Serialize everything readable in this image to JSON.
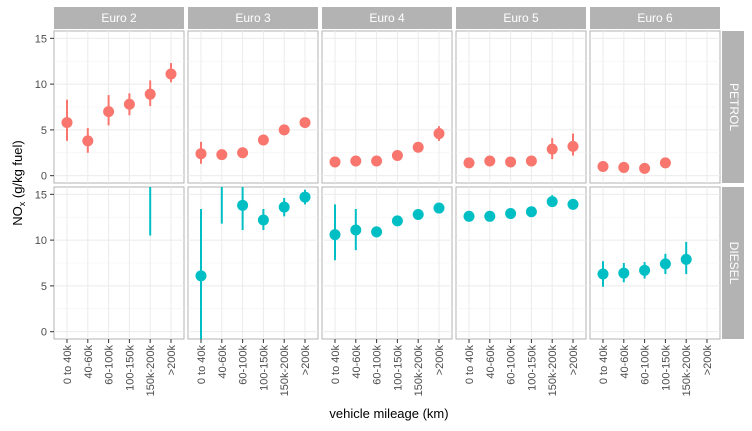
{
  "chart_data": {
    "type": "scatter",
    "xlabel": "vehicle mileage (km)",
    "ylabel": "NO",
    "ylabel_sub": "x",
    "ylabel_rest": " (g/kg fuel)",
    "ylim": [
      -0.8,
      15.8
    ],
    "yticks": [
      "0",
      "5",
      "10",
      "15"
    ],
    "ytick_values": [
      0,
      5,
      10,
      15
    ],
    "categories": [
      "0 to 40k",
      "40-60k",
      "60-100k",
      "100-150k",
      "150k-200k",
      ">200k"
    ],
    "columns": [
      "Euro 2",
      "Euro 3",
      "Euro 4",
      "Euro 5",
      "Euro 6"
    ],
    "rows": [
      "PETROL",
      "DIESEL"
    ],
    "colors": {
      "PETROL": "#F8766D",
      "DIESEL": "#00BFC4",
      "strip": "#b3b3b3",
      "grid": "#ebebeb",
      "border": "#b3b3b3"
    },
    "grid": true,
    "legend": "none",
    "series": [
      {
        "fuel": "PETROL",
        "euro": "Euro 2",
        "points": [
          {
            "x": "0 to 40k",
            "y": 5.8,
            "lo": 3.8,
            "hi": 8.3
          },
          {
            "x": "40-60k",
            "y": 3.8,
            "lo": 2.5,
            "hi": 5.2
          },
          {
            "x": "60-100k",
            "y": 7.0,
            "lo": 5.5,
            "hi": 8.8
          },
          {
            "x": "100-150k",
            "y": 7.8,
            "lo": 6.6,
            "hi": 9.0
          },
          {
            "x": "150k-200k",
            "y": 8.9,
            "lo": 7.6,
            "hi": 10.4
          },
          {
            "x": ">200k",
            "y": 11.1,
            "lo": 10.2,
            "hi": 12.3
          }
        ]
      },
      {
        "fuel": "PETROL",
        "euro": "Euro 3",
        "points": [
          {
            "x": "0 to 40k",
            "y": 2.4,
            "lo": 1.3,
            "hi": 3.7
          },
          {
            "x": "40-60k",
            "y": 2.3,
            "lo": 1.8,
            "hi": 2.8
          },
          {
            "x": "60-100k",
            "y": 2.5,
            "lo": 2.1,
            "hi": 2.9
          },
          {
            "x": "100-150k",
            "y": 3.9,
            "lo": 3.5,
            "hi": 4.3
          },
          {
            "x": "150k-200k",
            "y": 5.0,
            "lo": 4.6,
            "hi": 5.4
          },
          {
            "x": ">200k",
            "y": 5.8,
            "lo": 5.3,
            "hi": 6.3
          }
        ]
      },
      {
        "fuel": "PETROL",
        "euro": "Euro 4",
        "points": [
          {
            "x": "0 to 40k",
            "y": 1.5,
            "lo": 1.2,
            "hi": 1.8
          },
          {
            "x": "40-60k",
            "y": 1.6,
            "lo": 1.3,
            "hi": 1.9
          },
          {
            "x": "60-100k",
            "y": 1.6,
            "lo": 1.3,
            "hi": 1.9
          },
          {
            "x": "100-150k",
            "y": 2.2,
            "lo": 1.8,
            "hi": 2.6
          },
          {
            "x": "150k-200k",
            "y": 3.1,
            "lo": 2.6,
            "hi": 3.6
          },
          {
            "x": ">200k",
            "y": 4.6,
            "lo": 3.8,
            "hi": 5.4
          }
        ]
      },
      {
        "fuel": "PETROL",
        "euro": "Euro 5",
        "points": [
          {
            "x": "0 to 40k",
            "y": 1.4,
            "lo": 1.1,
            "hi": 1.7
          },
          {
            "x": "40-60k",
            "y": 1.6,
            "lo": 1.3,
            "hi": 1.9
          },
          {
            "x": "60-100k",
            "y": 1.5,
            "lo": 1.2,
            "hi": 1.8
          },
          {
            "x": "100-150k",
            "y": 1.6,
            "lo": 1.3,
            "hi": 2.0
          },
          {
            "x": "150k-200k",
            "y": 2.9,
            "lo": 1.8,
            "hi": 4.1
          },
          {
            "x": ">200k",
            "y": 3.2,
            "lo": 2.2,
            "hi": 4.6
          }
        ]
      },
      {
        "fuel": "PETROL",
        "euro": "Euro 6",
        "points": [
          {
            "x": "0 to 40k",
            "y": 1.0,
            "lo": 0.7,
            "hi": 1.3
          },
          {
            "x": "40-60k",
            "y": 0.9,
            "lo": 0.6,
            "hi": 1.2
          },
          {
            "x": "60-100k",
            "y": 0.8,
            "lo": 0.5,
            "hi": 1.1
          },
          {
            "x": "100-150k",
            "y": 1.4,
            "lo": 1.1,
            "hi": 1.7
          }
        ]
      },
      {
        "fuel": "DIESEL",
        "euro": "Euro 2",
        "points": [
          {
            "x": "150k-200k",
            "y": null,
            "lo": 10.5,
            "hi": 15.8
          }
        ]
      },
      {
        "fuel": "DIESEL",
        "euro": "Euro 3",
        "points": [
          {
            "x": "0 to 40k",
            "y": 6.1,
            "lo": -0.8,
            "hi": 13.4
          },
          {
            "x": "40-60k",
            "y": null,
            "lo": 11.8,
            "hi": 15.8
          },
          {
            "x": "60-100k",
            "y": 13.8,
            "lo": 11.1,
            "hi": 15.8
          },
          {
            "x": "100-150k",
            "y": 12.2,
            "lo": 11.1,
            "hi": 13.4
          },
          {
            "x": "150k-200k",
            "y": 13.6,
            "lo": 12.6,
            "hi": 14.6
          },
          {
            "x": ">200k",
            "y": 14.7,
            "lo": 13.9,
            "hi": 15.5
          }
        ]
      },
      {
        "fuel": "DIESEL",
        "euro": "Euro 4",
        "points": [
          {
            "x": "0 to 40k",
            "y": 10.6,
            "lo": 7.8,
            "hi": 13.9
          },
          {
            "x": "40-60k",
            "y": 11.1,
            "lo": 8.9,
            "hi": 13.4
          },
          {
            "x": "60-100k",
            "y": 10.9,
            "lo": 10.3,
            "hi": 11.5
          },
          {
            "x": "100-150k",
            "y": 12.1,
            "lo": 11.7,
            "hi": 12.5
          },
          {
            "x": "150k-200k",
            "y": 12.8,
            "lo": 12.4,
            "hi": 13.2
          },
          {
            "x": ">200k",
            "y": 13.5,
            "lo": 13.1,
            "hi": 13.9
          }
        ]
      },
      {
        "fuel": "DIESEL",
        "euro": "Euro 5",
        "points": [
          {
            "x": "0 to 40k",
            "y": 12.6,
            "lo": 12.3,
            "hi": 12.9
          },
          {
            "x": "40-60k",
            "y": 12.6,
            "lo": 12.3,
            "hi": 12.9
          },
          {
            "x": "60-100k",
            "y": 12.9,
            "lo": 12.6,
            "hi": 13.2
          },
          {
            "x": "100-150k",
            "y": 13.1,
            "lo": 12.7,
            "hi": 13.5
          },
          {
            "x": "150k-200k",
            "y": 14.2,
            "lo": 13.7,
            "hi": 14.9
          },
          {
            "x": ">200k",
            "y": 13.9,
            "lo": 13.4,
            "hi": 14.5
          }
        ]
      },
      {
        "fuel": "DIESEL",
        "euro": "Euro 6",
        "points": [
          {
            "x": "0 to 40k",
            "y": 6.3,
            "lo": 4.9,
            "hi": 7.7
          },
          {
            "x": "40-60k",
            "y": 6.4,
            "lo": 5.4,
            "hi": 7.5
          },
          {
            "x": "60-100k",
            "y": 6.7,
            "lo": 5.8,
            "hi": 7.6
          },
          {
            "x": "100-150k",
            "y": 7.4,
            "lo": 6.3,
            "hi": 8.5
          },
          {
            "x": "150k-200k",
            "y": 7.9,
            "lo": 6.3,
            "hi": 9.8
          }
        ]
      }
    ]
  }
}
